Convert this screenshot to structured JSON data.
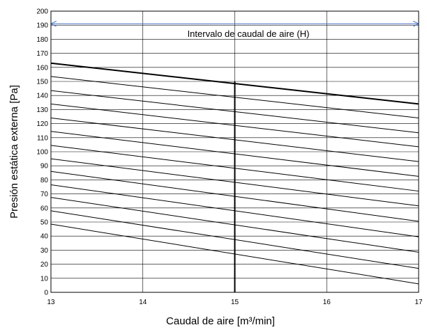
{
  "chart_data": {
    "type": "line",
    "title": "",
    "xlabel": "Caudal de aire [m³/min]",
    "ylabel": "Presión estática externa [Pa]",
    "xlim": [
      13,
      17
    ],
    "ylim": [
      0,
      200
    ],
    "x_ticks": [
      13,
      14,
      15,
      16,
      17
    ],
    "y_ticks": [
      0,
      10,
      20,
      30,
      40,
      50,
      60,
      70,
      80,
      90,
      100,
      110,
      120,
      130,
      140,
      150,
      160,
      170,
      180,
      190,
      200
    ],
    "grid": true,
    "legend": "none",
    "annotation": {
      "text": "Intervalo de caudal de aire (H)",
      "x_range": [
        13,
        17
      ],
      "y": 191
    },
    "vertical_marker": {
      "x": 15,
      "y_range": [
        0,
        150
      ]
    },
    "series": [
      {
        "x": [
          13,
          17
        ],
        "y": [
          163,
          134
        ],
        "bold": true
      },
      {
        "x": [
          13,
          17
        ],
        "y": [
          153.5,
          124
        ]
      },
      {
        "x": [
          13,
          17
        ],
        "y": [
          143.5,
          113.5
        ]
      },
      {
        "x": [
          13,
          17
        ],
        "y": [
          134,
          103.5
        ]
      },
      {
        "x": [
          13,
          17
        ],
        "y": [
          124,
          93
        ]
      },
      {
        "x": [
          13,
          17
        ],
        "y": [
          114.5,
          82.5
        ]
      },
      {
        "x": [
          13,
          17
        ],
        "y": [
          104.5,
          72
        ]
      },
      {
        "x": [
          13,
          17
        ],
        "y": [
          95,
          61.5
        ]
      },
      {
        "x": [
          13,
          17
        ],
        "y": [
          86,
          50.5
        ]
      },
      {
        "x": [
          13,
          17
        ],
        "y": [
          76.5,
          39.5
        ]
      },
      {
        "x": [
          13,
          17
        ],
        "y": [
          67.5,
          28.5
        ]
      },
      {
        "x": [
          13,
          17
        ],
        "y": [
          58,
          17
        ]
      },
      {
        "x": [
          13,
          17
        ],
        "y": [
          48.5,
          6
        ]
      }
    ],
    "colors": {
      "line": "#000000",
      "grid": "#000000",
      "arrow": "#4472C4"
    }
  }
}
